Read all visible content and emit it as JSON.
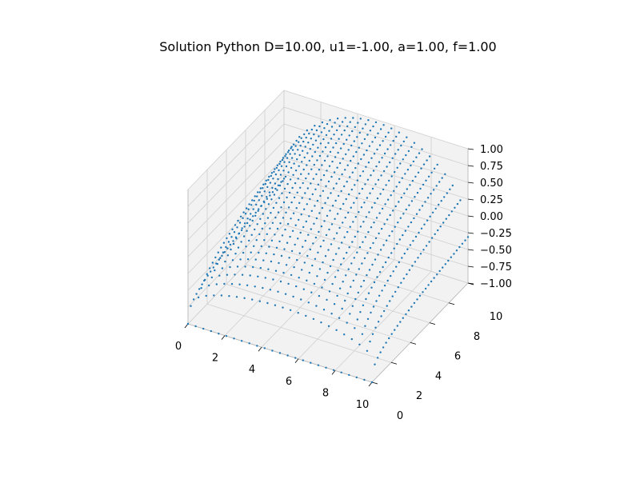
{
  "chart_data": {
    "type": "scatter",
    "projection": "3d",
    "title": "Solution Python  D=10.00, u1=-1.00, a=1.00, f=1.00",
    "xlabel": "",
    "ylabel": "",
    "zlabel": "",
    "xlim": [
      0,
      10
    ],
    "ylim": [
      0,
      10
    ],
    "zlim": [
      -1,
      1
    ],
    "x_ticks": [
      "0",
      "2",
      "4",
      "6",
      "8",
      "10"
    ],
    "y_ticks": [
      "0",
      "2",
      "4",
      "6",
      "8",
      "10"
    ],
    "z_ticks": [
      "−1.00",
      "−0.75",
      "−0.50",
      "−0.25",
      "0.00",
      "0.25",
      "0.50",
      "0.75",
      "1.00"
    ],
    "grid": true,
    "marker_color": "#1f77b4",
    "pane_color": "#f2f2f2",
    "grid_color": "#d0d0d0"
  }
}
